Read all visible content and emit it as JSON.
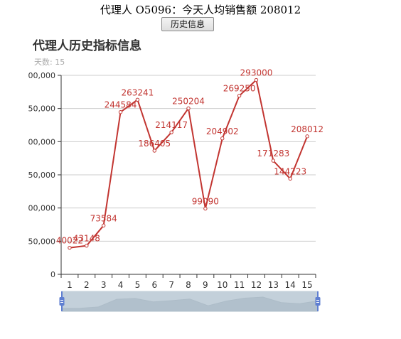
{
  "header": {
    "agent_label": "代理人 O5096：今天人均销售额 208012"
  },
  "buttons": {
    "history_label": "历史信息"
  },
  "chart_data": {
    "type": "line",
    "title": "代理人历史指标信息",
    "subtitle": "天数: 15",
    "categories": [
      "1",
      "2",
      "3",
      "4",
      "5",
      "6",
      "7",
      "8",
      "9",
      "10",
      "11",
      "12",
      "13",
      "14",
      "15"
    ],
    "series": [
      {
        "values": [
          40022,
          43148,
          73584,
          244584,
          263241,
          186405,
          214117,
          250204,
          99090,
          204902,
          269250,
          293000,
          171283,
          144223,
          208012
        ],
        "color": "#c23531"
      }
    ],
    "y_tick_labels": [
      "0",
      "50,000",
      "00,000",
      "50,000",
      "00,000",
      "50,000",
      "00,000"
    ],
    "ylim": [
      0,
      300000
    ],
    "y_interval": 50000,
    "grid": true,
    "has_datazoom_slider": true
  }
}
